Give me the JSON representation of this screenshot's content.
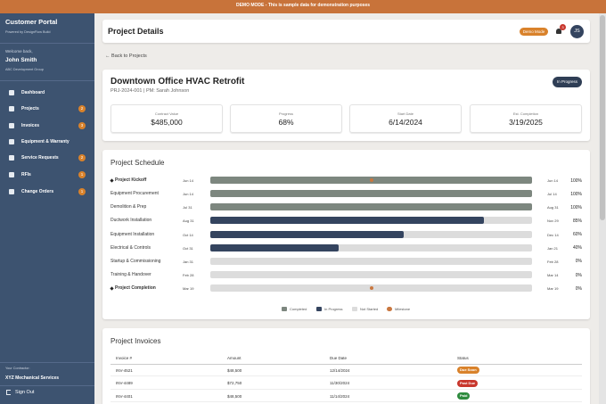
{
  "banner": "DEMO MODE - This is sample data for demonstration purposes",
  "sidebar": {
    "title": "Customer Portal",
    "subtitle": "Powered by DesignFlow Build",
    "welcome": "Welcome back,",
    "user": "John Smith",
    "company": "ABC Development Group",
    "nav": [
      {
        "label": "Dashboard"
      },
      {
        "label": "Projects",
        "badge": 2
      },
      {
        "label": "Invoices",
        "badge": 3
      },
      {
        "label": "Equipment & Warranty"
      },
      {
        "label": "Service Requests",
        "badge": 2
      },
      {
        "label": "RFIs",
        "badge": 1
      },
      {
        "label": "Change Orders",
        "badge": 1
      }
    ],
    "contractor_label": "Your Contractor:",
    "contractor": "XYZ Mechanical Services",
    "sign_out": "Sign Out"
  },
  "header": {
    "title": "Project Details",
    "demo": "Demo Mode",
    "notifications": 3,
    "avatar": "JS"
  },
  "back": "← Back to Projects",
  "project": {
    "title": "Downtown Office HVAC Retrofit",
    "subtitle": "PRJ-2024-001 | PM: Sarah Johnson",
    "status": "In Progress",
    "stats": [
      {
        "label": "Contract Value",
        "value": "$485,000"
      },
      {
        "label": "Progress",
        "value": "68%"
      },
      {
        "label": "Start Date",
        "value": "6/14/2024"
      },
      {
        "label": "Est. Completion",
        "value": "3/19/2025"
      }
    ]
  },
  "schedule": {
    "title": "Project Schedule",
    "tasks": [
      {
        "name": "Project Kickoff",
        "start": "Jun 14",
        "end": "Jun 14",
        "progress": 100,
        "progress_label": "100%",
        "milestone": true
      },
      {
        "name": "Equipment Procurement",
        "start": "Jun 14",
        "end": "Jul 14",
        "progress": 100,
        "progress_label": "100%"
      },
      {
        "name": "Demolition & Prep",
        "start": "Jul 31",
        "end": "Aug 31",
        "progress": 100,
        "progress_label": "100%"
      },
      {
        "name": "Ductwork Installation",
        "start": "Aug 31",
        "end": "Nov 29",
        "progress": 85,
        "progress_label": "85%"
      },
      {
        "name": "Equipment Installation",
        "start": "Oct 14",
        "end": "Dec 14",
        "progress": 60,
        "progress_label": "60%"
      },
      {
        "name": "Electrical & Controls",
        "start": "Oct 31",
        "end": "Jan 21",
        "progress": 40,
        "progress_label": "40%"
      },
      {
        "name": "Startup & Commissioning",
        "start": "Jan 31",
        "end": "Feb 28",
        "progress": 0,
        "progress_label": "0%"
      },
      {
        "name": "Training & Handover",
        "start": "Feb 28",
        "end": "Mar 14",
        "progress": 0,
        "progress_label": "0%"
      },
      {
        "name": "Project Completion",
        "start": "Mar 19",
        "end": "Mar 19",
        "progress": 0,
        "progress_label": "0%",
        "milestone": true
      }
    ],
    "legend": [
      {
        "label": "Completed",
        "color": "#7d877f"
      },
      {
        "label": "In Progress",
        "color": "#34445f"
      },
      {
        "label": "Not Started",
        "color": "#dcdcdc"
      },
      {
        "label": "Milestone",
        "color": "#c9773f"
      }
    ]
  },
  "invoices": {
    "title": "Project Invoices",
    "columns": [
      "Invoice #",
      "Amount",
      "Due Date",
      "Status"
    ],
    "rows": [
      [
        "INV-4521",
        "$48,500",
        "12/14/2024",
        "Due Soon"
      ],
      [
        "INV-4489",
        "$72,750",
        "11/30/2024",
        "Past Due"
      ],
      [
        "INV-4401",
        "$48,500",
        "11/14/2024",
        "Paid"
      ]
    ],
    "status_colors": [
      "#d9822b",
      "#c8372d",
      "#2e8b3e"
    ]
  }
}
